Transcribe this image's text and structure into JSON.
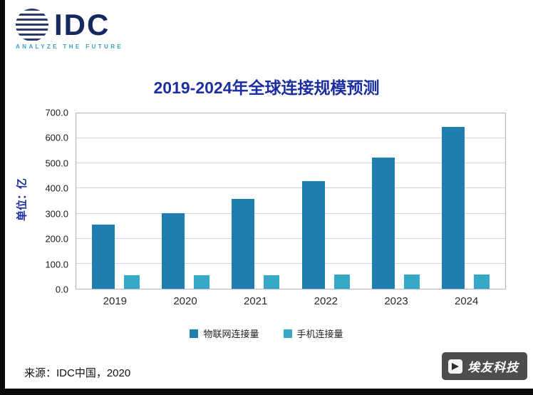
{
  "logo": {
    "name": "IDC",
    "tagline": "ANALYZE THE FUTURE"
  },
  "chart_data": {
    "type": "bar",
    "title": "2019-2024年全球连接规模预测",
    "ylabel": "单位：亿",
    "categories": [
      "2019",
      "2020",
      "2021",
      "2022",
      "2023",
      "2024"
    ],
    "series": [
      {
        "name": "物联网连接量",
        "color": "#1e7eb0",
        "values": [
          255,
          302,
          360,
          430,
          525,
          645
        ]
      },
      {
        "name": "手机连接量",
        "color": "#36a9c9",
        "values": [
          55,
          55,
          55,
          57,
          57,
          57
        ]
      }
    ],
    "ylim": [
      0,
      700
    ],
    "yticks": [
      0,
      100,
      200,
      300,
      400,
      500,
      600,
      700
    ],
    "grid": true,
    "legend_position": "bottom"
  },
  "footer": {
    "source": "来源：IDC中国，2020"
  },
  "watermark": {
    "text": "埃友科技"
  },
  "colors": {
    "title": "#1d2ea1",
    "iot_bar": "#1e7eb0",
    "mobile_bar": "#36a9c9",
    "logo_navy": "#16285f",
    "logo_teal": "#35a3bd"
  }
}
